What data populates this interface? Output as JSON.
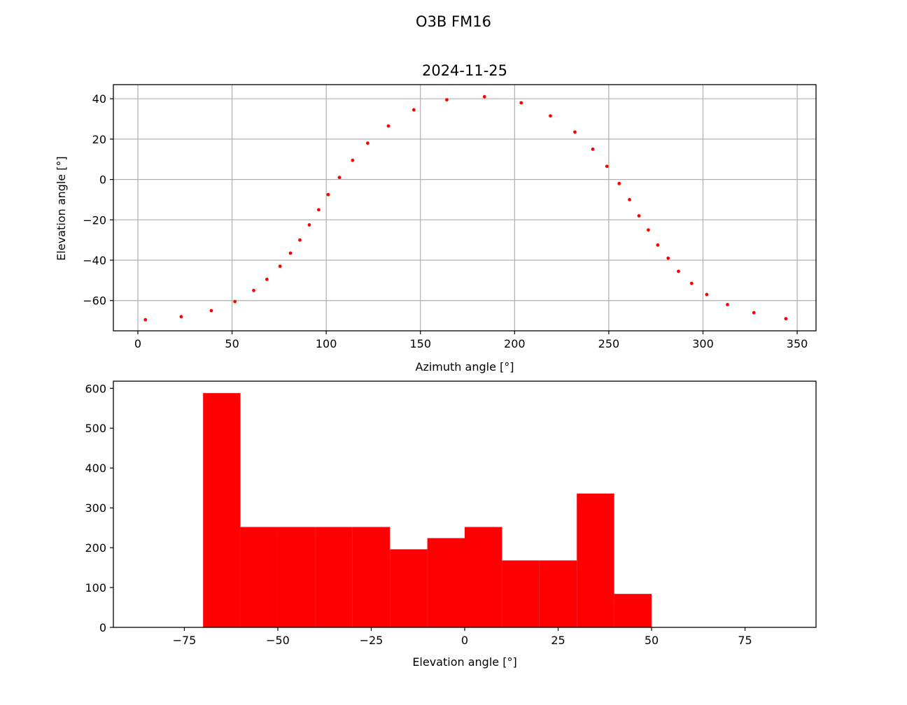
{
  "figure": {
    "suptitle": "O3B FM16"
  },
  "chart_data": [
    {
      "type": "scatter",
      "title": "2024-11-25",
      "xlabel": "Azimuth angle [°]",
      "ylabel": "Elevation angle [°]",
      "xlim": [
        -13,
        360
      ],
      "ylim": [
        -75,
        47
      ],
      "xticks": [
        0,
        50,
        100,
        150,
        200,
        250,
        300,
        350
      ],
      "yticks": [
        -60,
        -40,
        -20,
        0,
        20,
        40
      ],
      "xtick_labels": [
        "0",
        "50",
        "100",
        "150",
        "200",
        "250",
        "300",
        "350"
      ],
      "ytick_labels": [
        "−60",
        "−40",
        "−20",
        "0",
        "20",
        "40"
      ],
      "grid": true,
      "marker_color": "#ff0000",
      "points": [
        {
          "x": 4,
          "y": -69.5
        },
        {
          "x": 23,
          "y": -68
        },
        {
          "x": 39,
          "y": -65
        },
        {
          "x": 51.5,
          "y": -60.5
        },
        {
          "x": 61.5,
          "y": -55
        },
        {
          "x": 68.5,
          "y": -49.5
        },
        {
          "x": 75.5,
          "y": -43
        },
        {
          "x": 81,
          "y": -36.5
        },
        {
          "x": 86,
          "y": -30
        },
        {
          "x": 91,
          "y": -22.5
        },
        {
          "x": 96,
          "y": -15
        },
        {
          "x": 101,
          "y": -7.5
        },
        {
          "x": 107,
          "y": 1
        },
        {
          "x": 114,
          "y": 9.5
        },
        {
          "x": 122,
          "y": 18
        },
        {
          "x": 133,
          "y": 26.5
        },
        {
          "x": 146.5,
          "y": 34.5
        },
        {
          "x": 164,
          "y": 39.5
        },
        {
          "x": 184,
          "y": 41
        },
        {
          "x": 203.5,
          "y": 38
        },
        {
          "x": 219,
          "y": 31.5
        },
        {
          "x": 232,
          "y": 23.5
        },
        {
          "x": 241.5,
          "y": 15
        },
        {
          "x": 249,
          "y": 6.5
        },
        {
          "x": 255.5,
          "y": -2
        },
        {
          "x": 261,
          "y": -10
        },
        {
          "x": 266,
          "y": -18
        },
        {
          "x": 271,
          "y": -25
        },
        {
          "x": 276,
          "y": -32.5
        },
        {
          "x": 281.5,
          "y": -39
        },
        {
          "x": 287,
          "y": -45.5
        },
        {
          "x": 294,
          "y": -51.5
        },
        {
          "x": 302,
          "y": -57
        },
        {
          "x": 313,
          "y": -62
        },
        {
          "x": 327,
          "y": -66
        },
        {
          "x": 344,
          "y": -69
        }
      ]
    },
    {
      "type": "bar",
      "subtype": "histogram",
      "title": "",
      "xlabel": "Elevation angle [°]",
      "ylabel": "",
      "xlim": [
        -94,
        94
      ],
      "ylim": [
        0,
        618
      ],
      "xticks": [
        -75,
        -50,
        -25,
        0,
        25,
        50,
        75
      ],
      "yticks": [
        0,
        100,
        200,
        300,
        400,
        500,
        600
      ],
      "xtick_labels": [
        "−75",
        "−50",
        "−25",
        "0",
        "25",
        "50",
        "75"
      ],
      "ytick_labels": [
        "0",
        "100",
        "200",
        "300",
        "400",
        "500",
        "600"
      ],
      "grid": false,
      "bar_color": "#ff0000",
      "bins": [
        {
          "start": -70,
          "end": -60,
          "value": 588
        },
        {
          "start": -60,
          "end": -50,
          "value": 252
        },
        {
          "start": -50,
          "end": -40,
          "value": 252
        },
        {
          "start": -40,
          "end": -30,
          "value": 252
        },
        {
          "start": -30,
          "end": -20,
          "value": 252
        },
        {
          "start": -20,
          "end": -10,
          "value": 196
        },
        {
          "start": -10,
          "end": 0,
          "value": 224
        },
        {
          "start": 0,
          "end": 10,
          "value": 252
        },
        {
          "start": 10,
          "end": 20,
          "value": 168
        },
        {
          "start": 20,
          "end": 30,
          "value": 168
        },
        {
          "start": 30,
          "end": 40,
          "value": 336
        },
        {
          "start": 40,
          "end": 50,
          "value": 84
        }
      ]
    }
  ]
}
